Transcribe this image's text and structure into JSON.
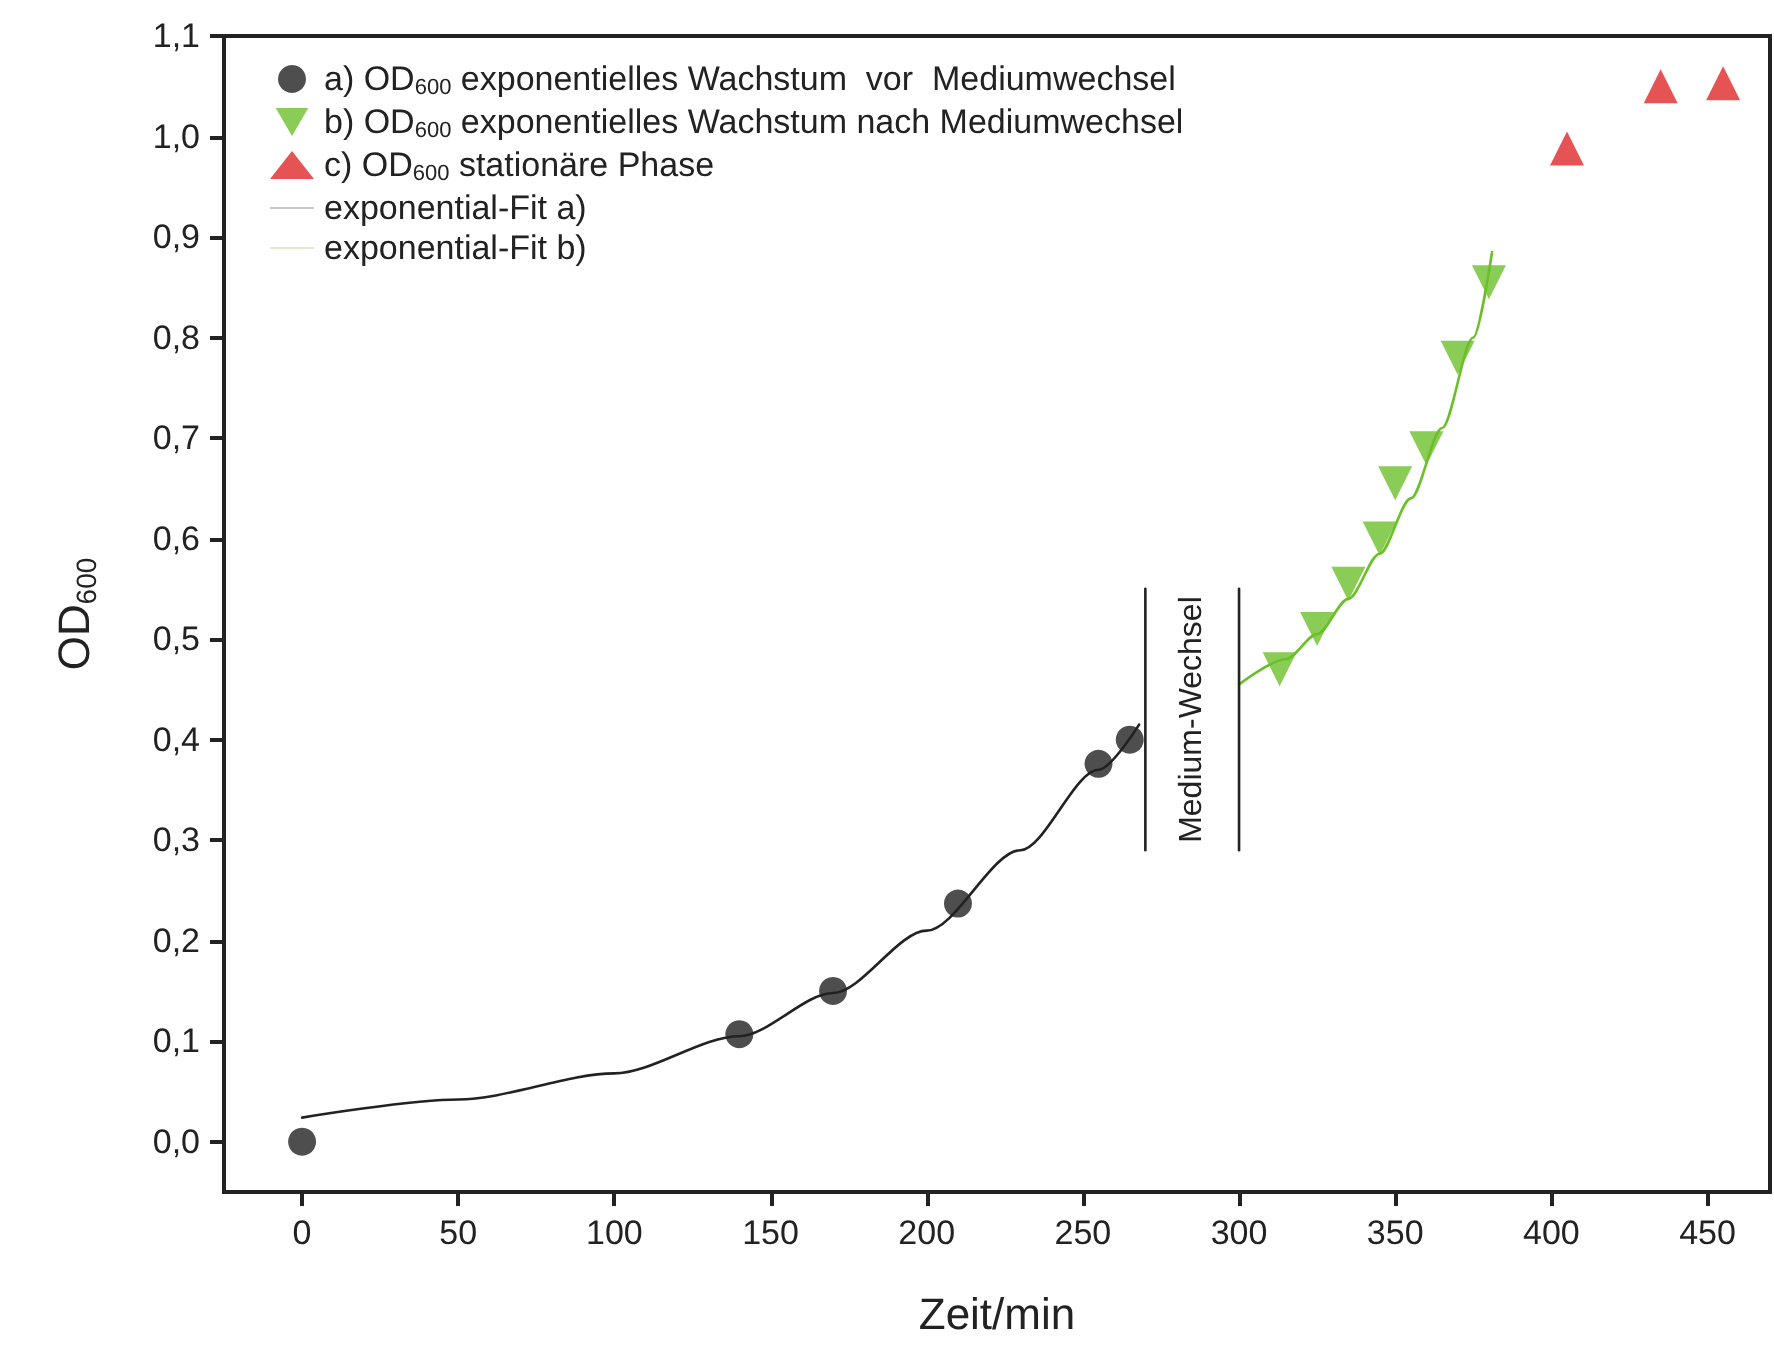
{
  "chart_data": {
    "type": "scatter",
    "xlabel": "Zeit/min",
    "ylabel": "OD$_{600}$",
    "xlim": [
      -25,
      470
    ],
    "xticks": [
      0,
      50,
      100,
      150,
      200,
      250,
      300,
      350,
      400,
      450
    ],
    "ylim": [
      -0.05,
      1.1
    ],
    "yticks": [
      {
        "value": 0,
        "label": "0,0"
      },
      {
        "value": 0.1,
        "label": "0,1"
      },
      {
        "value": 0.2,
        "label": "0,2"
      },
      {
        "value": 0.3,
        "label": "0,3"
      },
      {
        "value": 0.4,
        "label": "0,4"
      },
      {
        "value": 0.5,
        "label": "0,5"
      },
      {
        "value": 0.6,
        "label": "0,6"
      },
      {
        "value": 0.7,
        "label": "0,7"
      },
      {
        "value": 0.8,
        "label": "0,8"
      },
      {
        "value": 0.9,
        "label": "0,9"
      },
      {
        "value": 1.0,
        "label": "1,0"
      },
      {
        "value": 1.1,
        "label": "1,1"
      }
    ],
    "grid": false,
    "legend": "top left",
    "series": [
      {
        "name": "a) OD$_{600}$ exponentielles Wachstum  vor  Mediumwechsel",
        "marker": "circle",
        "color": "#222222",
        "x": [
          0,
          140,
          170,
          210,
          255,
          265
        ],
        "values": [
          0,
          0.107,
          0.15,
          0.237,
          0.376,
          0.4
        ]
      },
      {
        "name": "b) OD$_{600}$ exponentielles Wachstum nach Mediumwechsel",
        "marker": "triangle-down",
        "color": "#6cbf2c",
        "x": [
          313,
          325,
          335,
          345,
          350,
          360,
          370,
          380
        ],
        "values": [
          0.47,
          0.51,
          0.555,
          0.6,
          0.655,
          0.69,
          0.78,
          0.855
        ]
      },
      {
        "name": "c) OD$_{600}$ stationäre Phase",
        "marker": "triangle",
        "color": "#e0282a",
        "x": [
          405,
          435,
          455
        ],
        "values": [
          0.988,
          1.05,
          1.053
        ]
      },
      {
        "name": "exponential-Fit a)",
        "type": "line",
        "marker": "none",
        "color": "#222222",
        "x": [
          0,
          50,
          100,
          140,
          170,
          200,
          230,
          255,
          268
        ],
        "values": [
          0.024,
          0.042,
          0.068,
          0.105,
          0.148,
          0.21,
          0.29,
          0.37,
          0.415
        ]
      },
      {
        "name": "exponential-Fit b)",
        "type": "line",
        "marker": "none",
        "color": "#6cbf2c",
        "x": [
          300,
          315,
          325,
          335,
          345,
          355,
          365,
          375,
          381
        ],
        "values": [
          0.455,
          0.48,
          0.505,
          0.54,
          0.585,
          0.64,
          0.71,
          0.8,
          0.885
        ]
      },
      {
        "type": "line",
        "marker": "none",
        "color": "#222222",
        "x": [
          270,
          270
        ],
        "values": [
          0.29,
          0.55
        ]
      },
      {
        "type": "line",
        "marker": "none",
        "color": "#222222",
        "x": [
          300,
          300
        ],
        "values": [
          0.29,
          0.55
        ]
      }
    ],
    "annotations": [
      "Medium-Wechsel"
    ]
  }
}
